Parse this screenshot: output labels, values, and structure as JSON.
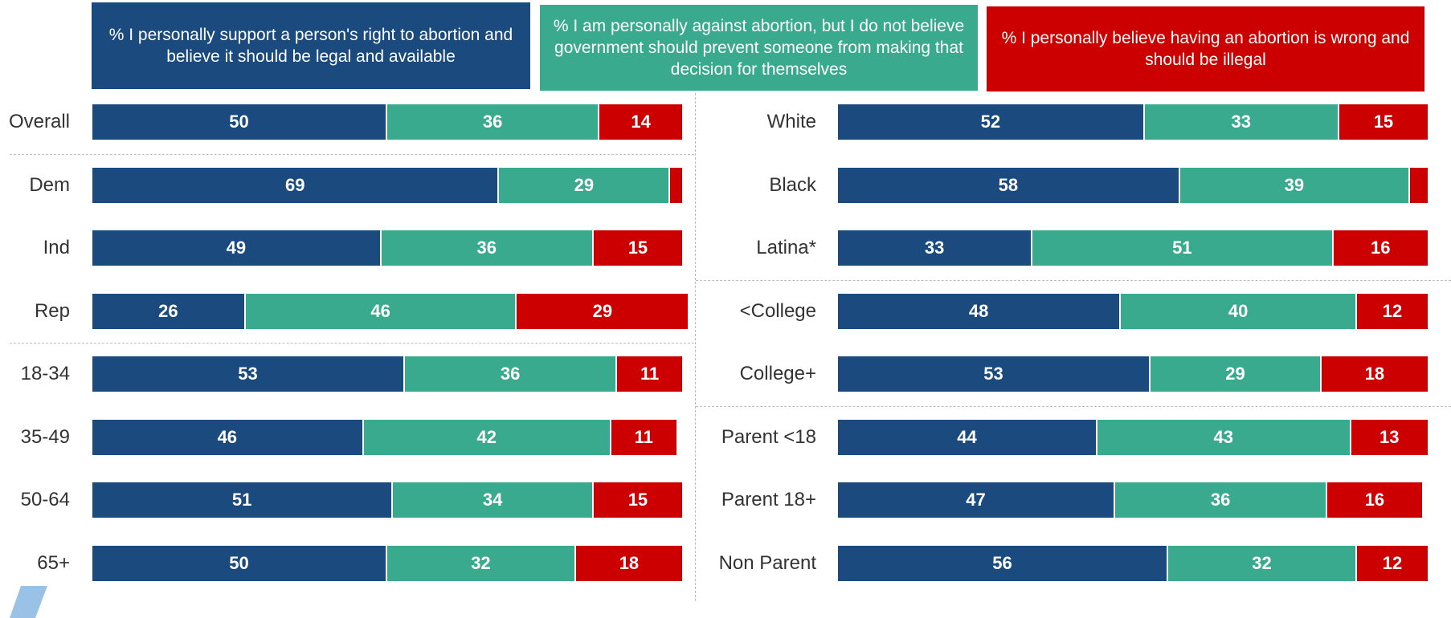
{
  "colors": {
    "support": "#1a4a7e",
    "against_personal": "#3aaa8f",
    "illegal": "#cc0000"
  },
  "legend": [
    {
      "text": "% I personally support a person's right to abortion and believe it should be legal and available",
      "color": "#1a4a7e"
    },
    {
      "text": "% I am personally against abortion, but I do not believe government should prevent someone from making that decision for themselves",
      "color": "#3aaa8f"
    },
    {
      "text": "% I personally believe having an abortion is wrong and should be illegal",
      "color": "#cc0000"
    }
  ],
  "chart_data": [
    {
      "type": "bar",
      "orientation": "horizontal",
      "stacked": true,
      "series_names": [
        "% I personally support a person's right to abortion and believe it should be legal and available",
        "% I am personally against abortion, but I do not believe government should prevent someone from making that decision for themselves",
        "% I personally believe having an abortion is wrong and should be illegal"
      ],
      "categories": [
        "Overall",
        "Dem",
        "Ind",
        "Rep",
        "18-34",
        "35-49",
        "50-64",
        "65+"
      ],
      "series": [
        {
          "values": [
            50,
            69,
            49,
            26,
            53,
            46,
            51,
            50
          ]
        },
        {
          "values": [
            36,
            29,
            36,
            46,
            36,
            42,
            34,
            32
          ]
        },
        {
          "values": [
            14,
            2,
            15,
            29,
            11,
            11,
            15,
            18
          ]
        }
      ],
      "labels_shown": [
        [
          "50",
          "69",
          "49",
          "26",
          "53",
          "46",
          "51",
          "50"
        ],
        [
          "36",
          "29",
          "36",
          "46",
          "36",
          "42",
          "34",
          "32"
        ],
        [
          "14",
          "",
          "15",
          "29",
          "11",
          "11",
          "15",
          "18"
        ]
      ],
      "separators_after": [
        0,
        3
      ],
      "xlim": [
        0,
        100
      ]
    },
    {
      "type": "bar",
      "orientation": "horizontal",
      "stacked": true,
      "categories": [
        "White",
        "Black",
        "Latina*",
        "<College",
        "College+",
        "Parent <18",
        "Parent 18+",
        "Non Parent"
      ],
      "series": [
        {
          "values": [
            52,
            58,
            33,
            48,
            53,
            44,
            47,
            56
          ]
        },
        {
          "values": [
            33,
            39,
            51,
            40,
            29,
            43,
            36,
            32
          ]
        },
        {
          "values": [
            15,
            3,
            16,
            12,
            18,
            13,
            16,
            12
          ]
        }
      ],
      "labels_shown": [
        [
          "52",
          "58",
          "33",
          "48",
          "53",
          "44",
          "47",
          "56"
        ],
        [
          "33",
          "39",
          "51",
          "40",
          "29",
          "43",
          "36",
          "32"
        ],
        [
          "15",
          "",
          "16",
          "12",
          "18",
          "13",
          "16",
          "12"
        ]
      ],
      "separators_after": [
        2,
        4
      ],
      "xlim": [
        0,
        100
      ]
    }
  ]
}
